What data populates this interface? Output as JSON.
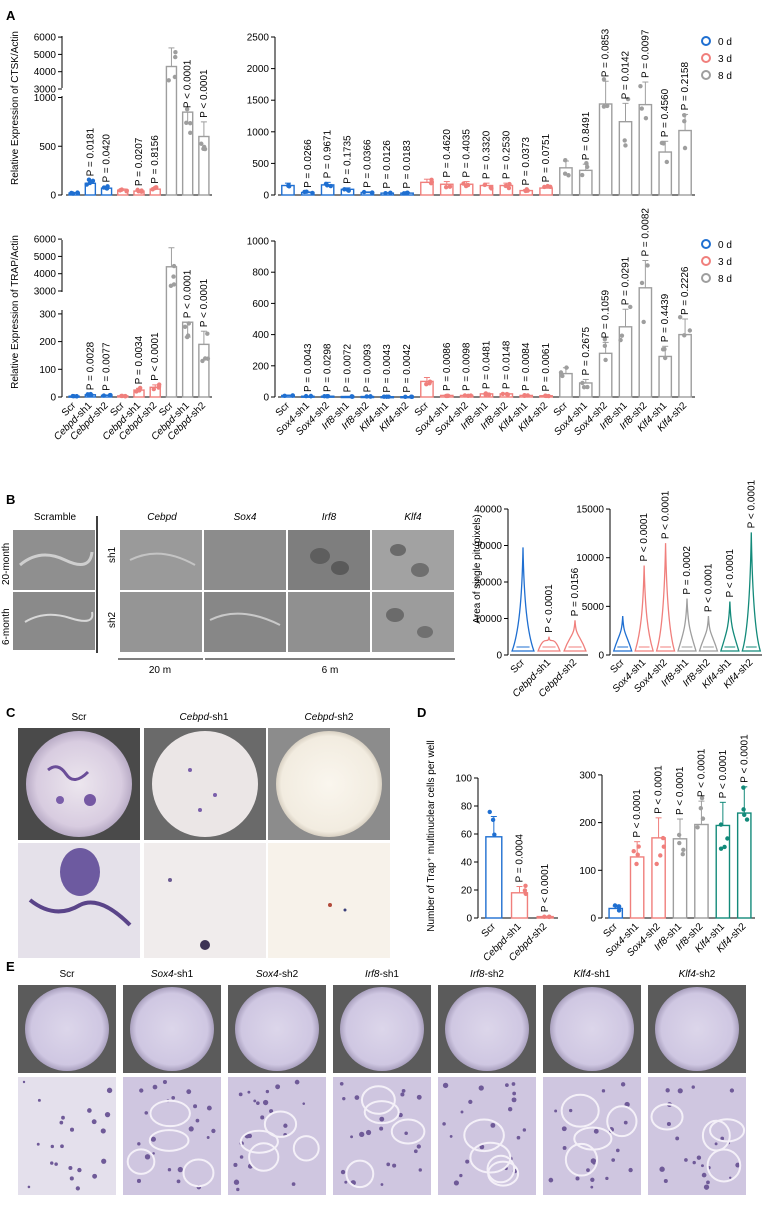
{
  "panels": {
    "A": "A",
    "B": "B",
    "C": "C",
    "D": "D",
    "E": "E"
  },
  "legend": {
    "items": [
      {
        "label": "0 d",
        "color": "#1f6fd1"
      },
      {
        "label": "3 d",
        "color": "#f07f7c"
      },
      {
        "label": "8 d",
        "color": "#9e9e9e"
      }
    ]
  },
  "colors": {
    "blue": "#1f6fd1",
    "red": "#f07f7c",
    "gray": "#9e9e9e",
    "green": "#138a7a"
  },
  "chart_data": [
    {
      "id": "A-ctsk-left",
      "type": "bar",
      "ylabel": "Relative Expression of CTSK/Actin",
      "yticks": [
        0,
        500,
        1000,
        3000,
        4000,
        5000,
        6000
      ],
      "categories": [
        "Scr",
        "Cebpd-sh1",
        "Cebpd-sh2",
        "Scr",
        "Cebpd-sh1",
        "Cebpd-sh2",
        "Scr",
        "Cebpd-sh1",
        "Cebpd-sh2"
      ],
      "groups": [
        "0 d",
        "0 d",
        "0 d",
        "3 d",
        "3 d",
        "3 d",
        "8 d",
        "8 d",
        "8 d"
      ],
      "values": [
        20,
        120,
        70,
        50,
        40,
        60,
        4300,
        850,
        600
      ],
      "pvalues": [
        "",
        "P = 0.0181",
        "P = 0.0420",
        "",
        "P = 0.0207",
        "P = 0.8156",
        "",
        "P < 0.0001",
        "P < 0.0001"
      ]
    },
    {
      "id": "A-ctsk-right",
      "type": "bar",
      "yticks": [
        0,
        500,
        1000,
        1500,
        2000,
        2500
      ],
      "ylim": [
        0,
        2500
      ],
      "categories": [
        "Scr",
        "Sox4-sh1",
        "Sox4-sh2",
        "Irf8-sh1",
        "Irf8-sh2",
        "Klf4-sh1",
        "Klf4-sh2",
        "Scr",
        "Sox4-sh1",
        "Sox4-sh2",
        "Irf8-sh1",
        "Irf8-sh2",
        "Klf4-sh1",
        "Klf4-sh2",
        "Scr",
        "Sox4-sh1",
        "Sox4-sh2",
        "Irf8-sh1",
        "Irf8-sh2",
        "Klf4-sh1",
        "Klf4-sh2"
      ],
      "values": [
        150,
        40,
        160,
        90,
        40,
        30,
        30,
        200,
        170,
        170,
        150,
        150,
        70,
        110,
        430,
        390,
        1440,
        1160,
        1430,
        680,
        1020
      ],
      "pvalues": [
        "",
        "P = 0.0266",
        "P = 0.9671",
        "P = 0.1735",
        "P = 0.0366",
        "P = 0.0126",
        "P = 0.0183",
        "",
        "P = 0.4620",
        "P = 0.4035",
        "P = 0.3320",
        "P = 0.2530",
        "P = 0.0373",
        "P = 0.0751",
        "",
        "P = 0.8491",
        "P = 0.0853",
        "P = 0.0142",
        "P = 0.0097",
        "P = 0.4560",
        "P = 0.2158"
      ]
    },
    {
      "id": "A-trap-left",
      "type": "bar",
      "ylabel": "Relative Expression of TRAP/Actin",
      "yticks": [
        0,
        100,
        200,
        300,
        3000,
        4000,
        5000,
        6000
      ],
      "categories": [
        "Scr",
        "Cebpd-sh1",
        "Cebpd-sh2",
        "Scr",
        "Cebpd-sh1",
        "Cebpd-sh2",
        "Scr",
        "Cebpd-sh1",
        "Cebpd-sh2"
      ],
      "values": [
        3,
        8,
        6,
        4,
        25,
        35,
        4400,
        270,
        190
      ],
      "pvalues": [
        "",
        "P = 0.0028",
        "P = 0.0077",
        "",
        "P = 0.0034",
        "P < 0.0001",
        "",
        "P < 0.0001",
        "P < 0.0001"
      ]
    },
    {
      "id": "A-trap-right",
      "type": "bar",
      "yticks": [
        0,
        200,
        400,
        600,
        800,
        1000
      ],
      "ylim": [
        0,
        1000
      ],
      "values": [
        10,
        5,
        5,
        3,
        3,
        2,
        2,
        100,
        10,
        10,
        20,
        20,
        10,
        8,
        150,
        90,
        280,
        450,
        700,
        260,
        400
      ],
      "pvalues": [
        "",
        "P = 0.0043",
        "P = 0.0298",
        "P = 0.0072",
        "P = 0.0093",
        "P = 0.0043",
        "P = 0.0042",
        "",
        "P = 0.0086",
        "P = 0.0098",
        "P = 0.0481",
        "P = 0.0148",
        "P = 0.0084",
        "P = 0.0061",
        "",
        "P = 0.2675",
        "P = 0.1059",
        "P = 0.0291",
        "P = 0.0082",
        "P = 0.4439",
        "P = 0.2226"
      ]
    },
    {
      "id": "B-violin-left",
      "type": "violin",
      "ylabel": "Area of single pit (pixels)",
      "yticks": [
        0,
        10000,
        20000,
        30000,
        40000
      ],
      "ylim": [
        0,
        40000
      ],
      "categories": [
        "Scr",
        "Cebpd-sh1",
        "Cebpd-sh2"
      ],
      "max": [
        29500,
        5000,
        9500
      ],
      "pvalues": [
        "",
        "P < 0.0001",
        "P = 0.0156"
      ]
    },
    {
      "id": "B-violin-right",
      "type": "violin",
      "yticks": [
        0,
        5000,
        10000,
        15000
      ],
      "ylim": [
        0,
        15000
      ],
      "categories": [
        "Scr",
        "Sox4-sh1",
        "Sox4-sh2",
        "Irf8-sh1",
        "Irf8-sh2",
        "Klf4-sh1",
        "Klf4-sh2"
      ],
      "max": [
        4000,
        9200,
        11500,
        5800,
        4000,
        5500,
        12600
      ],
      "pvalues": [
        "",
        "P < 0.0001",
        "P < 0.0001",
        "P = 0.0002",
        "P < 0.0001",
        "P < 0.0001",
        "P < 0.0001"
      ]
    },
    {
      "id": "D-left",
      "type": "bar",
      "ylabel": "Number of Trap⁺ multinuclear cells per well",
      "yticks": [
        0,
        20,
        40,
        60,
        80,
        100
      ],
      "ylim": [
        0,
        100
      ],
      "categories": [
        "Scr",
        "Cebpd-sh1",
        "Cebpd-sh2"
      ],
      "values": [
        58,
        18,
        1
      ],
      "pvalues": [
        "",
        "P = 0.0004",
        "P < 0.0001"
      ]
    },
    {
      "id": "D-right",
      "type": "bar",
      "yticks": [
        0,
        100,
        200,
        300
      ],
      "ylim": [
        0,
        300
      ],
      "categories": [
        "Scr",
        "Sox4-sh1",
        "Sox4-sh2",
        "Irf8-sh1",
        "Irf8-sh2",
        "Klf4-sh1",
        "Klf4-sh2"
      ],
      "values": [
        20,
        128,
        168,
        166,
        196,
        194,
        220
      ],
      "pvalues": [
        "",
        "P < 0.0001",
        "P < 0.0001",
        "P < 0.0001",
        "P < 0.0001",
        "P < 0.0001",
        "P < 0.0001"
      ]
    }
  ],
  "panelB": {
    "scramble": "Scramble",
    "rows": [
      "20-month",
      "6-month"
    ],
    "cols": [
      "Cebpd",
      "Sox4",
      "Irf8",
      "Klf4"
    ],
    "sh": [
      "sh1",
      "sh2"
    ],
    "age_20": "20 m",
    "age_6": "6 m"
  },
  "panelC": {
    "labels": [
      "Scr",
      "Cebpd-sh1",
      "Cebpd-sh2"
    ]
  },
  "panelE": {
    "labels": [
      "Scr",
      "Sox4-sh1",
      "Sox4-sh2",
      "Irf8-sh1",
      "Irf8-sh2",
      "Klf4-sh1",
      "Klf4-sh2"
    ]
  }
}
